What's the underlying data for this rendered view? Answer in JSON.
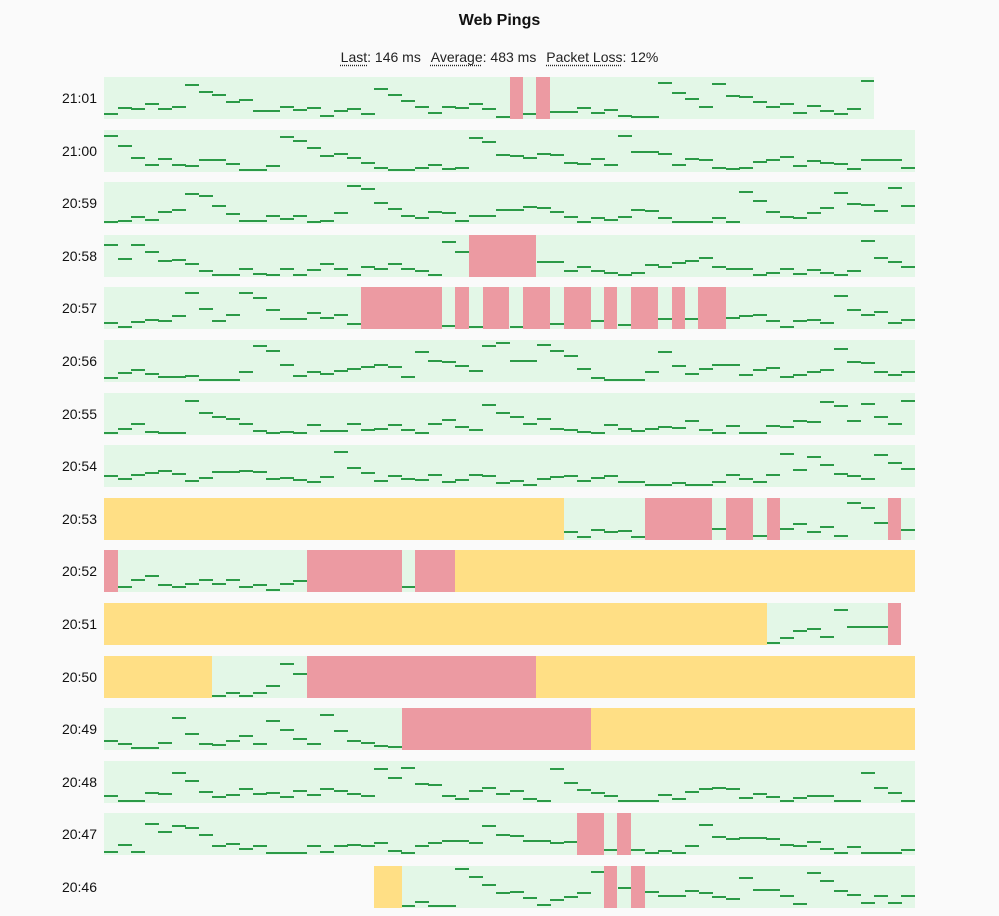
{
  "header": {
    "title": "Web Pings",
    "stats": [
      {
        "label": "Last",
        "value": "146 ms"
      },
      {
        "label": "Average",
        "value": "483 ms"
      },
      {
        "label": "Packet Loss",
        "value": "12%"
      }
    ]
  },
  "colors": {
    "ok": "#e3f7e7",
    "ping": "#2b9a47",
    "loss": "#ec9aa2",
    "no_data": "#ffdf85"
  },
  "rows": [
    {
      "time": "21:01",
      "coverage": 0.95,
      "segments": [
        [
          "loss",
          0.5,
          0.517
        ],
        [
          "loss",
          0.533,
          0.55
        ]
      ]
    },
    {
      "time": "21:00",
      "coverage": 1,
      "segments": []
    },
    {
      "time": "20:59",
      "coverage": 1,
      "segments": []
    },
    {
      "time": "20:58",
      "coverage": 1,
      "segments": [
        [
          "loss",
          0.45,
          0.533
        ]
      ]
    },
    {
      "time": "20:57",
      "coverage": 1,
      "segments": [
        [
          "loss",
          0.317,
          0.417
        ],
        [
          "loss",
          0.433,
          0.45
        ],
        [
          "loss",
          0.467,
          0.5
        ],
        [
          "loss",
          0.517,
          0.55
        ],
        [
          "loss",
          0.567,
          0.6
        ],
        [
          "loss",
          0.617,
          0.633
        ],
        [
          "loss",
          0.65,
          0.683
        ],
        [
          "loss",
          0.7,
          0.717
        ],
        [
          "loss",
          0.733,
          0.767
        ]
      ]
    },
    {
      "time": "20:56",
      "coverage": 1,
      "segments": []
    },
    {
      "time": "20:55",
      "coverage": 1,
      "segments": []
    },
    {
      "time": "20:54",
      "coverage": 1,
      "segments": []
    },
    {
      "time": "20:53",
      "coverage": 1,
      "segments": [
        [
          "gap",
          0,
          0.567
        ],
        [
          "loss",
          0.667,
          0.75
        ],
        [
          "loss",
          0.767,
          0.8
        ],
        [
          "loss",
          0.817,
          0.833
        ],
        [
          "loss",
          0.967,
          0.983
        ]
      ]
    },
    {
      "time": "20:52",
      "coverage": 1,
      "segments": [
        [
          "loss",
          0,
          0.017
        ],
        [
          "loss",
          0.25,
          0.367
        ],
        [
          "loss",
          0.383,
          0.433
        ],
        [
          "gap",
          0.433,
          1
        ]
      ]
    },
    {
      "time": "20:51",
      "coverage": 0.983,
      "segments": [
        [
          "gap",
          0,
          0.817
        ],
        [
          "loss",
          0.967,
          0.983
        ]
      ]
    },
    {
      "time": "20:50",
      "coverage": 1,
      "segments": [
        [
          "gap",
          0,
          0.133
        ],
        [
          "loss",
          0.25,
          0.533
        ],
        [
          "gap",
          0.533,
          1
        ]
      ]
    },
    {
      "time": "20:49",
      "coverage": 1,
      "segments": [
        [
          "loss",
          0.367,
          0.6
        ],
        [
          "gap",
          0.6,
          1
        ]
      ]
    },
    {
      "time": "20:48",
      "coverage": 1,
      "segments": []
    },
    {
      "time": "20:47",
      "coverage": 1,
      "segments": [
        [
          "loss",
          0.583,
          0.617
        ],
        [
          "loss",
          0.633,
          0.65
        ]
      ]
    },
    {
      "time": "20:46",
      "coverage": 1,
      "start": 0.333,
      "segments": [
        [
          "gap",
          0.333,
          0.367
        ],
        [
          "loss",
          0.617,
          0.633
        ],
        [
          "loss",
          0.65,
          0.667
        ]
      ]
    }
  ]
}
